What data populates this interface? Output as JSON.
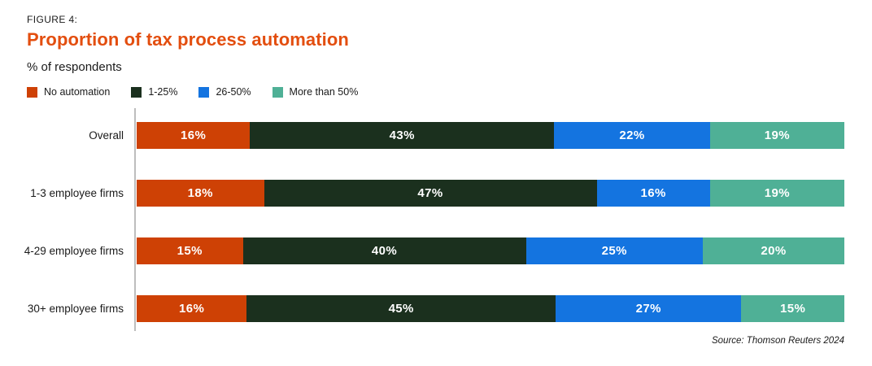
{
  "header": {
    "figure_label": "FIGURE 4:",
    "title": "Proportion of tax process automation",
    "subtitle": "% of respondents"
  },
  "source": "Source: Thomson Reuters 2024",
  "colors": {
    "title_accent": "#e34e0f",
    "axis_line": "#bdbdbd",
    "value_label": "#ffffff",
    "text": "#1a1a1a"
  },
  "chart_data": {
    "type": "bar",
    "orientation": "horizontal",
    "stacked": true,
    "unit": "%",
    "legend_position": "top",
    "value_labels": "inside",
    "xlim": [
      0,
      100
    ],
    "grid": false,
    "categories": [
      "Overall",
      "1-3 employee firms",
      "4-29 employee firms",
      "30+ employee firms"
    ],
    "series": [
      {
        "name": "No automation",
        "color": "#ce4105",
        "values": [
          16,
          18,
          15,
          16
        ]
      },
      {
        "name": "1-25%",
        "color": "#1b301e",
        "values": [
          43,
          47,
          40,
          45
        ]
      },
      {
        "name": "26-50%",
        "color": "#1474e0",
        "values": [
          22,
          16,
          25,
          27
        ]
      },
      {
        "name": "More than 50%",
        "color": "#4fb096",
        "values": [
          19,
          19,
          20,
          15
        ]
      }
    ]
  }
}
